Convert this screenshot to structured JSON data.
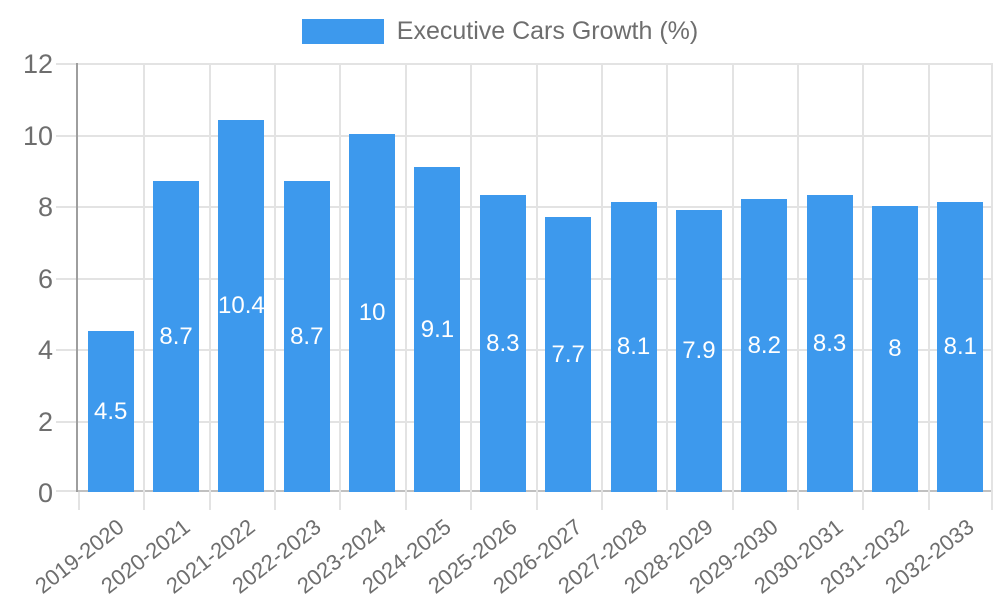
{
  "legend": {
    "label": "Executive Cars Growth (%)"
  },
  "chart_data": {
    "type": "bar",
    "title": "Executive Cars Growth (%)",
    "categories": [
      "2019-2020",
      "2020-2021",
      "2021-2022",
      "2022-2023",
      "2023-2024",
      "2024-2025",
      "2025-2026",
      "2026-2027",
      "2027-2028",
      "2028-2029",
      "2029-2030",
      "2030-2031",
      "2031-2032",
      "2032-2033"
    ],
    "values": [
      4.5,
      8.7,
      10.4,
      8.7,
      10,
      9.1,
      8.3,
      7.7,
      8.1,
      7.9,
      8.2,
      8.3,
      8,
      8.1
    ],
    "bar_labels": [
      "4.5",
      "8.7",
      "10.4",
      "8.7",
      "10",
      "9.1",
      "8.3",
      "7.7",
      "8.1",
      "7.9",
      "8.2",
      "8.3",
      "8",
      "8.1"
    ],
    "xlabel": "",
    "ylabel": "",
    "ylim": [
      0,
      12
    ],
    "yticks": [
      0,
      2,
      4,
      6,
      8,
      10,
      12
    ],
    "grid": true,
    "legend_position": "top",
    "colors": {
      "bar": "#3D99ED",
      "grid": "#e3e3e3",
      "baseline": "#c0c0c0",
      "y_axis": "#9e9e9e",
      "tick_text": "#6e6e6e",
      "bar_label_text": "#ffffff"
    }
  }
}
